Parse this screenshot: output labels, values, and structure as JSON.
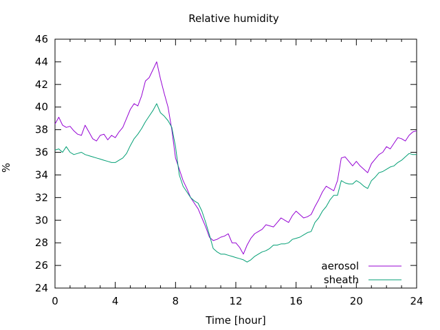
{
  "chart_data": {
    "type": "line",
    "title": "Relative humidity",
    "xlabel": "Time [hour]",
    "ylabel": "%",
    "xlim": [
      0,
      24
    ],
    "ylim": [
      24,
      46
    ],
    "xticks": [
      0,
      4,
      8,
      12,
      16,
      20,
      24
    ],
    "yticks": [
      24,
      26,
      28,
      30,
      32,
      34,
      36,
      38,
      40,
      42,
      44,
      46
    ],
    "grid": false,
    "legend_position": "bottom-right",
    "series": [
      {
        "name": "aerosol",
        "color": "#9400d3",
        "x": [
          0,
          0.25,
          0.5,
          0.75,
          1,
          1.25,
          1.5,
          1.75,
          2,
          2.25,
          2.5,
          2.75,
          3,
          3.25,
          3.5,
          3.75,
          4,
          4.25,
          4.5,
          4.75,
          5,
          5.25,
          5.5,
          5.75,
          6,
          6.25,
          6.5,
          6.75,
          7,
          7.25,
          7.5,
          7.75,
          8,
          8.25,
          8.5,
          8.75,
          9,
          9.25,
          9.5,
          9.75,
          10,
          10.25,
          10.5,
          10.75,
          11,
          11.25,
          11.5,
          11.75,
          12,
          12.25,
          12.5,
          12.75,
          13,
          13.25,
          13.5,
          13.75,
          14,
          14.25,
          14.5,
          14.75,
          15,
          15.25,
          15.5,
          15.75,
          16,
          16.25,
          16.5,
          16.75,
          17,
          17.25,
          17.5,
          17.75,
          18,
          18.25,
          18.5,
          18.75,
          19,
          19.25,
          19.5,
          19.75,
          20,
          20.25,
          20.5,
          20.75,
          21,
          21.25,
          21.5,
          21.75,
          22,
          22.25,
          22.5,
          22.75,
          23,
          23.25,
          23.5,
          23.75,
          24
        ],
        "values": [
          38.5,
          39.1,
          38.4,
          38.2,
          38.3,
          37.9,
          37.6,
          37.5,
          38.4,
          37.8,
          37.2,
          37.0,
          37.5,
          37.6,
          37.1,
          37.5,
          37.3,
          37.8,
          38.2,
          39.0,
          39.8,
          40.3,
          40.1,
          41.0,
          42.3,
          42.6,
          43.3,
          44.0,
          42.5,
          41.2,
          40.0,
          38.0,
          35.5,
          34.5,
          33.5,
          32.8,
          32.0,
          31.5,
          31.0,
          30.2,
          29.4,
          28.5,
          28.2,
          28.3,
          28.5,
          28.6,
          28.8,
          28.0,
          28.0,
          27.6,
          27.0,
          27.8,
          28.4,
          28.8,
          29.0,
          29.2,
          29.6,
          29.5,
          29.4,
          29.8,
          30.2,
          30.0,
          29.8,
          30.4,
          30.8,
          30.5,
          30.2,
          30.3,
          30.5,
          31.2,
          31.8,
          32.5,
          33.0,
          32.8,
          32.6,
          33.5,
          35.5,
          35.6,
          35.2,
          34.8,
          35.2,
          34.8,
          34.5,
          34.2,
          35.0,
          35.4,
          35.8,
          36.0,
          36.5,
          36.3,
          36.8,
          37.3,
          37.2,
          37.0,
          37.5,
          37.8,
          37.9
        ],
        "line_width": 1
      },
      {
        "name": "sheath",
        "color": "#009e73",
        "x": [
          0,
          0.25,
          0.5,
          0.75,
          1,
          1.25,
          1.5,
          1.75,
          2,
          2.25,
          2.5,
          2.75,
          3,
          3.25,
          3.5,
          3.75,
          4,
          4.25,
          4.5,
          4.75,
          5,
          5.25,
          5.5,
          5.75,
          6,
          6.25,
          6.5,
          6.75,
          7,
          7.25,
          7.5,
          7.75,
          8,
          8.25,
          8.5,
          8.75,
          9,
          9.25,
          9.5,
          9.75,
          10,
          10.25,
          10.5,
          10.75,
          11,
          11.25,
          11.5,
          11.75,
          12,
          12.25,
          12.5,
          12.75,
          13,
          13.25,
          13.5,
          13.75,
          14,
          14.25,
          14.5,
          14.75,
          15,
          15.25,
          15.5,
          15.75,
          16,
          16.25,
          16.5,
          16.75,
          17,
          17.25,
          17.5,
          17.75,
          18,
          18.25,
          18.5,
          18.75,
          19,
          19.25,
          19.5,
          19.75,
          20,
          20.25,
          20.5,
          20.75,
          21,
          21.25,
          21.5,
          21.75,
          22,
          22.25,
          22.5,
          22.75,
          23,
          23.25,
          23.5,
          23.75,
          24
        ],
        "values": [
          36.2,
          36.3,
          36.0,
          36.5,
          36.0,
          35.8,
          35.9,
          36.0,
          35.8,
          35.7,
          35.6,
          35.5,
          35.4,
          35.3,
          35.2,
          35.1,
          35.1,
          35.3,
          35.5,
          35.9,
          36.6,
          37.2,
          37.6,
          38.1,
          38.7,
          39.2,
          39.7,
          40.3,
          39.5,
          39.2,
          38.8,
          38.2,
          36.5,
          34.0,
          33.0,
          32.5,
          32.0,
          31.7,
          31.5,
          30.8,
          29.8,
          28.7,
          27.5,
          27.2,
          27.0,
          27.0,
          26.9,
          26.8,
          26.7,
          26.6,
          26.5,
          26.3,
          26.5,
          26.8,
          27.0,
          27.2,
          27.3,
          27.5,
          27.8,
          27.8,
          27.9,
          27.9,
          28.0,
          28.3,
          28.4,
          28.5,
          28.7,
          28.9,
          29.0,
          29.8,
          30.2,
          30.8,
          31.2,
          31.8,
          32.2,
          32.2,
          33.5,
          33.3,
          33.2,
          33.2,
          33.5,
          33.3,
          33.0,
          32.8,
          33.5,
          33.8,
          34.2,
          34.3,
          34.5,
          34.7,
          34.8,
          35.1,
          35.3,
          35.6,
          35.9,
          35.8,
          35.8
        ],
        "line_width": 1
      }
    ]
  }
}
